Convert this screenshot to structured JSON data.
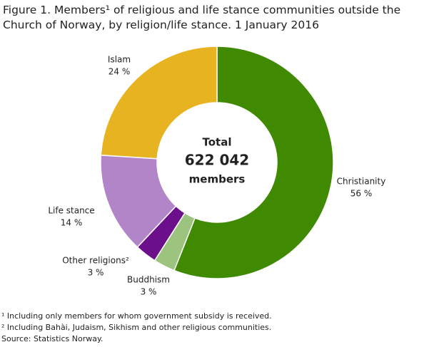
{
  "chart_data": {
    "type": "donut",
    "title": "Figure 1. Members¹ of religious and life stance communities outside the Church of Norway, by religion/life stance. 1 January 2016",
    "categories": [
      "Christianity",
      "Buddhism",
      "Other religions²",
      "Life stance",
      "Islam"
    ],
    "values": [
      56,
      3,
      3,
      14,
      24
    ],
    "value_labels": [
      "56 %",
      "3 %",
      "3 %",
      "14 %",
      "24 %"
    ],
    "colors": [
      "#3f8a00",
      "#9dc47e",
      "#6c0f8a",
      "#b285c8",
      "#e8b321"
    ],
    "center_text": [
      "Total",
      "622 042",
      "members"
    ],
    "footnotes": [
      "¹ Including only members for whom government subsidy is received.",
      "² Including Bahài, Judaism, Sikhism and other religious communities."
    ],
    "source": "Source: Statistics Norway."
  }
}
